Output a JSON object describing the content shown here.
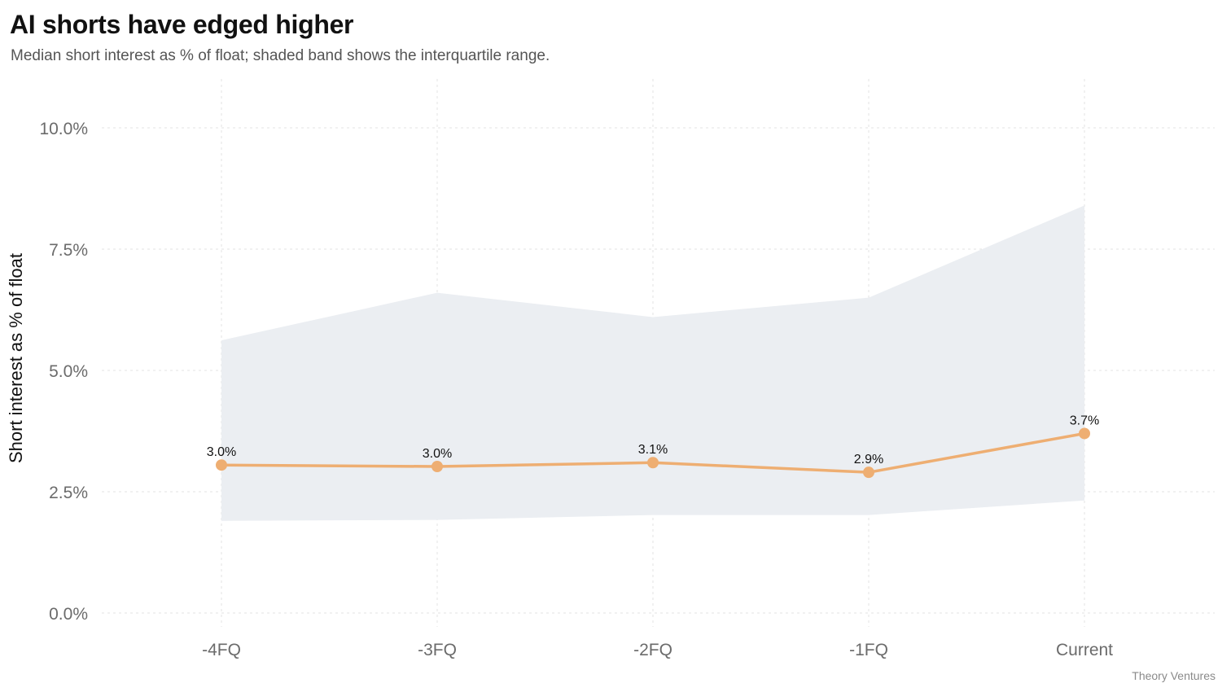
{
  "title": "AI shorts have edged higher",
  "subtitle": "Median short interest as % of float; shaded band shows the interquartile range.",
  "source": "Theory Ventures",
  "colors": {
    "line": "#EEAE72",
    "band": "#EBEEF2",
    "grid": "#E3E3E3"
  },
  "chart_data": {
    "type": "line",
    "title": "AI shorts have edged higher",
    "subtitle": "Median short interest as % of float; shaded band shows the interquartile range.",
    "xlabel": "",
    "ylabel": "Short interest as % of float",
    "categories": [
      "-4FQ",
      "-3FQ",
      "-2FQ",
      "-1FQ",
      "Current"
    ],
    "ylim": [
      0,
      10.5
    ],
    "yticks": [
      0,
      2.5,
      5,
      7.5,
      10
    ],
    "ytick_labels": [
      "0.0%",
      "2.5%",
      "5.0%",
      "7.5%",
      "10.0%"
    ],
    "series": [
      {
        "values": [
          3.05,
          3.02,
          3.1,
          2.9,
          3.7
        ],
        "labels": [
          "3.0%",
          "3.0%",
          "3.1%",
          "2.9%",
          "3.7%"
        ]
      }
    ],
    "band": {
      "lower": [
        1.9,
        1.92,
        2.02,
        2.02,
        2.32
      ],
      "upper": [
        5.62,
        6.6,
        6.1,
        6.5,
        8.4
      ]
    },
    "grid": true,
    "legend": "none"
  }
}
